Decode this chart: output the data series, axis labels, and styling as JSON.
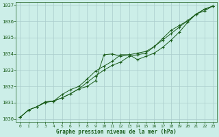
{
  "background_color": "#cceee8",
  "plot_bg_color": "#cceee8",
  "grid_color": "#aacccc",
  "line_color": "#1a5c1a",
  "xlabel": "Graphe pression niveau de la mer (hPa)",
  "xlim": [
    -0.5,
    23.5
  ],
  "ylim": [
    1029.8,
    1037.2
  ],
  "yticks": [
    1030,
    1031,
    1032,
    1033,
    1034,
    1035,
    1036,
    1037
  ],
  "xticks": [
    0,
    1,
    2,
    3,
    4,
    5,
    6,
    7,
    8,
    9,
    10,
    11,
    12,
    13,
    14,
    15,
    16,
    17,
    18,
    19,
    20,
    21,
    22,
    23
  ],
  "series1": [
    1030.1,
    1030.55,
    1030.75,
    1031.05,
    1031.1,
    1031.3,
    1031.55,
    1031.85,
    1032.0,
    1032.35,
    1033.95,
    1034.0,
    1033.85,
    1033.95,
    1033.65,
    1033.85,
    1034.05,
    1034.4,
    1034.85,
    1035.35,
    1035.95,
    1036.45,
    1036.65,
    1036.95
  ],
  "series2": [
    1030.1,
    1030.55,
    1030.75,
    1031.05,
    1031.1,
    1031.3,
    1031.55,
    1031.85,
    1032.25,
    1032.65,
    1033.0,
    1033.3,
    1033.5,
    1033.85,
    1033.95,
    1034.05,
    1034.45,
    1034.85,
    1035.25,
    1035.65,
    1036.05,
    1036.45,
    1036.75,
    1036.95
  ],
  "series3": [
    1030.1,
    1030.55,
    1030.75,
    1031.0,
    1031.1,
    1031.5,
    1031.8,
    1032.0,
    1032.45,
    1032.95,
    1033.25,
    1033.55,
    1033.95,
    1033.95,
    1034.05,
    1034.15,
    1034.45,
    1034.95,
    1035.45,
    1035.75,
    1036.05,
    1036.45,
    1036.75,
    1036.95
  ]
}
